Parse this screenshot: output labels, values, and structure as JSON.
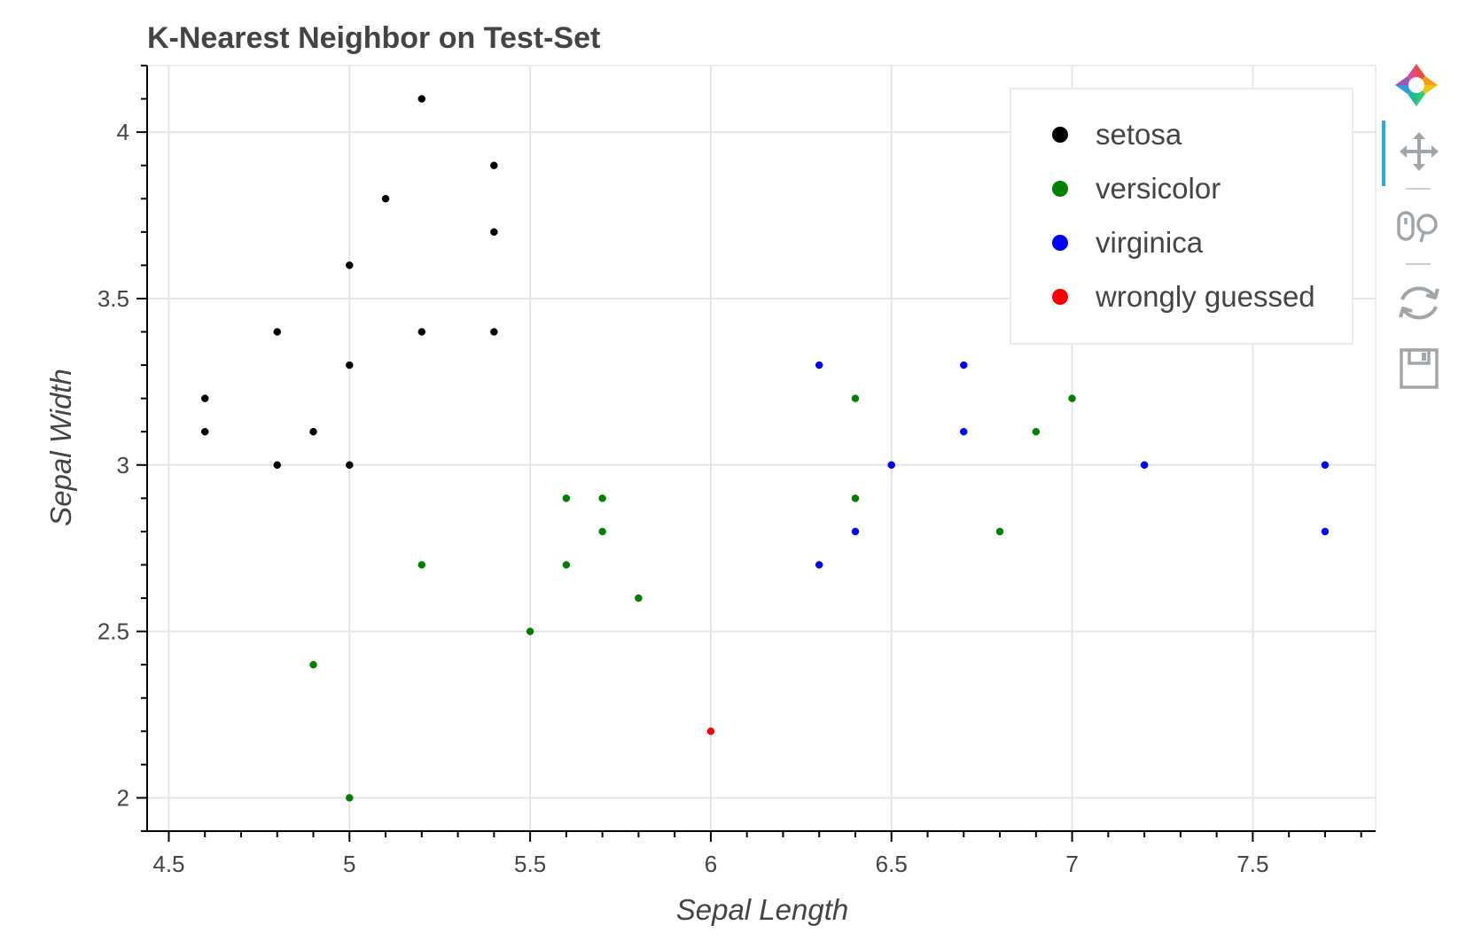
{
  "chart_data": {
    "type": "scatter",
    "title": "K-Nearest Neighbor on Test-Set",
    "xlabel": "Sepal Length",
    "ylabel": "Sepal Width",
    "xlim": [
      4.44,
      7.84
    ],
    "ylim": [
      1.9,
      4.2
    ],
    "xticks": [
      4.5,
      5,
      5.5,
      6,
      6.5,
      7,
      7.5
    ],
    "xtick_labels": [
      "4.5",
      "5",
      "5.5",
      "6",
      "6.5",
      "7",
      "7.5"
    ],
    "yticks": [
      2,
      2.5,
      3,
      3.5,
      4
    ],
    "ytick_labels": [
      "2",
      "2.5",
      "3",
      "3.5",
      "4"
    ],
    "grid": true,
    "legend_position": "top-right",
    "series": [
      {
        "name": "setosa",
        "color": "#000000",
        "points": [
          [
            4.6,
            3.2
          ],
          [
            4.6,
            3.1
          ],
          [
            4.8,
            3.4
          ],
          [
            4.8,
            3.0
          ],
          [
            4.9,
            3.1
          ],
          [
            5.0,
            3.6
          ],
          [
            5.0,
            3.3
          ],
          [
            5.0,
            3.0
          ],
          [
            5.1,
            3.8
          ],
          [
            5.2,
            4.1
          ],
          [
            5.2,
            3.4
          ],
          [
            5.4,
            3.9
          ],
          [
            5.4,
            3.7
          ],
          [
            5.4,
            3.4
          ]
        ]
      },
      {
        "name": "versicolor",
        "color": "#008000",
        "points": [
          [
            4.9,
            2.4
          ],
          [
            5.0,
            2.0
          ],
          [
            5.2,
            2.7
          ],
          [
            5.5,
            2.5
          ],
          [
            5.6,
            2.9
          ],
          [
            5.6,
            2.7
          ],
          [
            5.7,
            2.9
          ],
          [
            5.7,
            2.8
          ],
          [
            5.8,
            2.6
          ],
          [
            6.4,
            3.2
          ],
          [
            6.4,
            2.9
          ],
          [
            6.8,
            2.8
          ],
          [
            6.9,
            3.1
          ],
          [
            7.0,
            3.2
          ]
        ]
      },
      {
        "name": "virginica",
        "color": "#0000ff",
        "points": [
          [
            6.3,
            3.3
          ],
          [
            6.3,
            2.7
          ],
          [
            6.4,
            2.8
          ],
          [
            6.5,
            3.0
          ],
          [
            6.7,
            3.3
          ],
          [
            6.7,
            3.1
          ],
          [
            7.2,
            3.0
          ],
          [
            7.7,
            3.0
          ],
          [
            7.7,
            2.8
          ]
        ]
      },
      {
        "name": "wrongly guessed",
        "color": "#ff0000",
        "points": [
          [
            6.0,
            2.2
          ]
        ]
      }
    ]
  },
  "toolbar": {
    "logo_icon": "bokeh-logo-icon",
    "tools": [
      "pan-icon",
      "wheel-zoom-icon",
      "reset-icon",
      "save-icon"
    ],
    "active_tool": "pan-icon",
    "active_color": "#26aae1",
    "icon_color": "#a0a5aa"
  }
}
